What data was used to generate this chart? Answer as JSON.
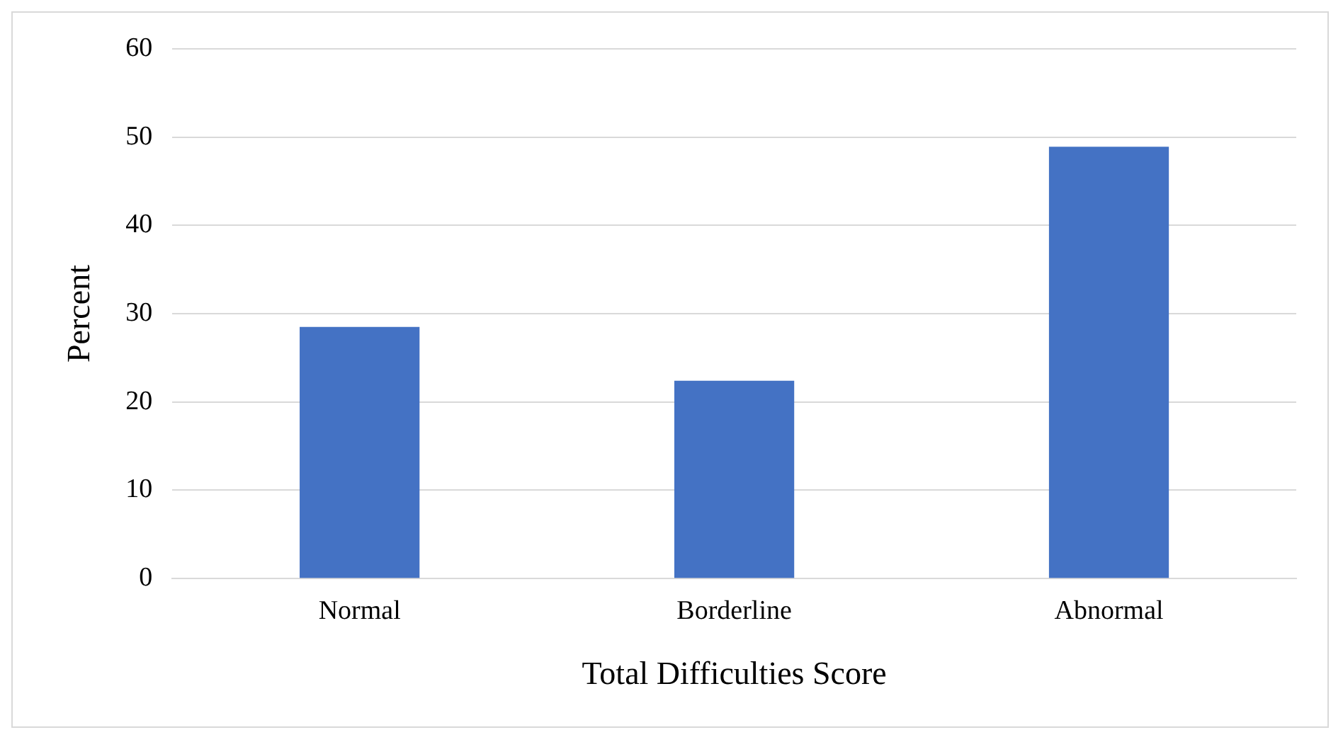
{
  "chart_data": {
    "type": "bar",
    "xlabel": "Total Difficulties Score",
    "ylabel": "Percent",
    "categories": [
      "Normal",
      "Borderline",
      "Abnormal"
    ],
    "values": [
      28.5,
      22.4,
      48.9
    ],
    "color": "#4472c4",
    "ylim": [
      0,
      60
    ],
    "yticks": [
      0,
      10,
      20,
      30,
      40,
      50,
      60
    ],
    "grid": "y",
    "legend": false
  }
}
